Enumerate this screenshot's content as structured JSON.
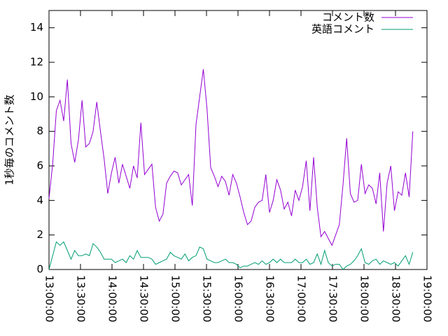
{
  "chart_data": {
    "type": "line",
    "ylabel": "1秒毎のコメント数",
    "x": [
      "13:00:00",
      "13:03:30",
      "13:07:00",
      "13:10:30",
      "13:14:00",
      "13:17:30",
      "13:21:00",
      "13:24:30",
      "13:28:00",
      "13:31:30",
      "13:35:00",
      "13:38:30",
      "13:42:00",
      "13:45:30",
      "13:49:00",
      "13:52:30",
      "13:56:00",
      "13:59:30",
      "14:03:00",
      "14:06:30",
      "14:10:00",
      "14:13:30",
      "14:17:00",
      "14:20:30",
      "14:24:00",
      "14:27:30",
      "14:31:00",
      "14:34:30",
      "14:38:00",
      "14:41:30",
      "14:45:00",
      "14:48:30",
      "14:52:00",
      "14:55:30",
      "14:59:00",
      "15:02:30",
      "15:06:00",
      "15:09:30",
      "15:13:00",
      "15:16:30",
      "15:20:00",
      "15:23:30",
      "15:27:00",
      "15:30:30",
      "15:34:00",
      "15:37:30",
      "15:41:00",
      "15:44:30",
      "15:48:00",
      "15:51:30",
      "15:55:00",
      "15:58:30",
      "16:02:00",
      "16:05:30",
      "16:09:00",
      "16:12:30",
      "16:16:00",
      "16:19:30",
      "16:23:00",
      "16:26:30",
      "16:30:00",
      "16:33:30",
      "16:37:00",
      "16:40:30",
      "16:44:00",
      "16:47:30",
      "16:51:00",
      "16:54:30",
      "16:58:00",
      "17:01:30",
      "17:05:00",
      "17:08:30",
      "17:12:00",
      "17:15:30",
      "17:19:00",
      "17:22:30",
      "17:26:00",
      "17:29:30",
      "17:33:00",
      "17:36:30",
      "17:40:00",
      "17:43:30",
      "17:47:00",
      "17:50:30",
      "17:54:00",
      "17:57:30",
      "18:01:00",
      "18:04:30",
      "18:08:00",
      "18:11:30",
      "18:15:00",
      "18:18:30",
      "18:22:00",
      "18:25:30",
      "18:29:00",
      "18:32:30",
      "18:36:00",
      "18:39:30",
      "18:43:00",
      "18:46:30"
    ],
    "series": [
      {
        "name": "コメント数",
        "color": "#9400d3",
        "values": [
          4.1,
          6.1,
          9.2,
          9.8,
          8.6,
          11.0,
          7.3,
          6.2,
          7.5,
          9.8,
          7.1,
          7.3,
          8.0,
          9.7,
          8.0,
          6.4,
          4.4,
          5.6,
          6.5,
          5.0,
          6.1,
          5.4,
          4.7,
          6.0,
          5.3,
          8.5,
          5.5,
          5.8,
          6.1,
          3.6,
          2.8,
          3.2,
          5.0,
          5.4,
          5.7,
          5.6,
          4.9,
          5.2,
          5.5,
          3.7,
          8.4,
          10.0,
          11.6,
          9.3,
          5.9,
          5.4,
          4.8,
          5.4,
          5.1,
          4.3,
          5.5,
          5.0,
          4.2,
          3.3,
          2.6,
          2.8,
          3.6,
          3.9,
          4.0,
          5.5,
          3.3,
          4.0,
          5.2,
          4.6,
          3.5,
          3.9,
          3.1,
          4.6,
          4.0,
          4.8,
          6.3,
          3.4,
          6.5,
          3.6,
          1.9,
          2.2,
          1.8,
          1.4,
          2.0,
          2.6,
          4.9,
          7.6,
          4.4,
          3.9,
          4.0,
          6.1,
          4.4,
          4.9,
          4.7,
          3.8,
          5.6,
          2.2,
          5.0,
          6.0,
          3.4,
          4.5,
          4.3,
          5.6,
          4.2,
          8.0
        ]
      },
      {
        "name": "英語コメント",
        "color": "#009e73",
        "values": [
          0.0,
          0.8,
          1.6,
          1.4,
          1.6,
          1.1,
          0.6,
          1.1,
          0.8,
          0.8,
          0.9,
          0.8,
          1.5,
          1.3,
          1.0,
          0.6,
          0.6,
          0.6,
          0.4,
          0.5,
          0.6,
          0.4,
          0.8,
          0.6,
          1.1,
          0.7,
          0.7,
          0.7,
          0.6,
          0.3,
          0.4,
          0.5,
          0.6,
          1.0,
          0.8,
          0.7,
          0.6,
          0.9,
          0.5,
          0.7,
          0.8,
          1.3,
          1.2,
          0.6,
          0.5,
          0.4,
          0.4,
          0.5,
          0.6,
          0.4,
          0.4,
          0.3,
          0.1,
          0.2,
          0.2,
          0.3,
          0.4,
          0.3,
          0.5,
          0.3,
          0.4,
          0.6,
          0.4,
          0.6,
          0.4,
          0.4,
          0.4,
          0.6,
          0.4,
          0.4,
          0.6,
          0.3,
          0.4,
          0.9,
          0.3,
          1.1,
          0.4,
          0.2,
          0.3,
          0.3,
          0.0,
          0.2,
          0.3,
          0.5,
          0.8,
          1.2,
          0.4,
          0.3,
          0.5,
          0.6,
          0.3,
          0.5,
          0.4,
          0.3,
          0.4,
          0.2,
          0.5,
          0.8,
          0.3,
          1.0
        ]
      }
    ],
    "xlim": [
      "13:00:00",
      "19:00:00"
    ],
    "xticks": [
      "13:00:00",
      "13:30:00",
      "14:00:00",
      "14:30:00",
      "15:00:00",
      "15:30:00",
      "16:00:00",
      "16:30:00",
      "17:00:00",
      "17:30:00",
      "18:00:00",
      "18:30:00",
      "19:00:00"
    ],
    "ylim": [
      0,
      15
    ],
    "yticks": [
      0,
      2,
      4,
      6,
      8,
      10,
      12,
      14
    ],
    "legend": "top-right"
  }
}
